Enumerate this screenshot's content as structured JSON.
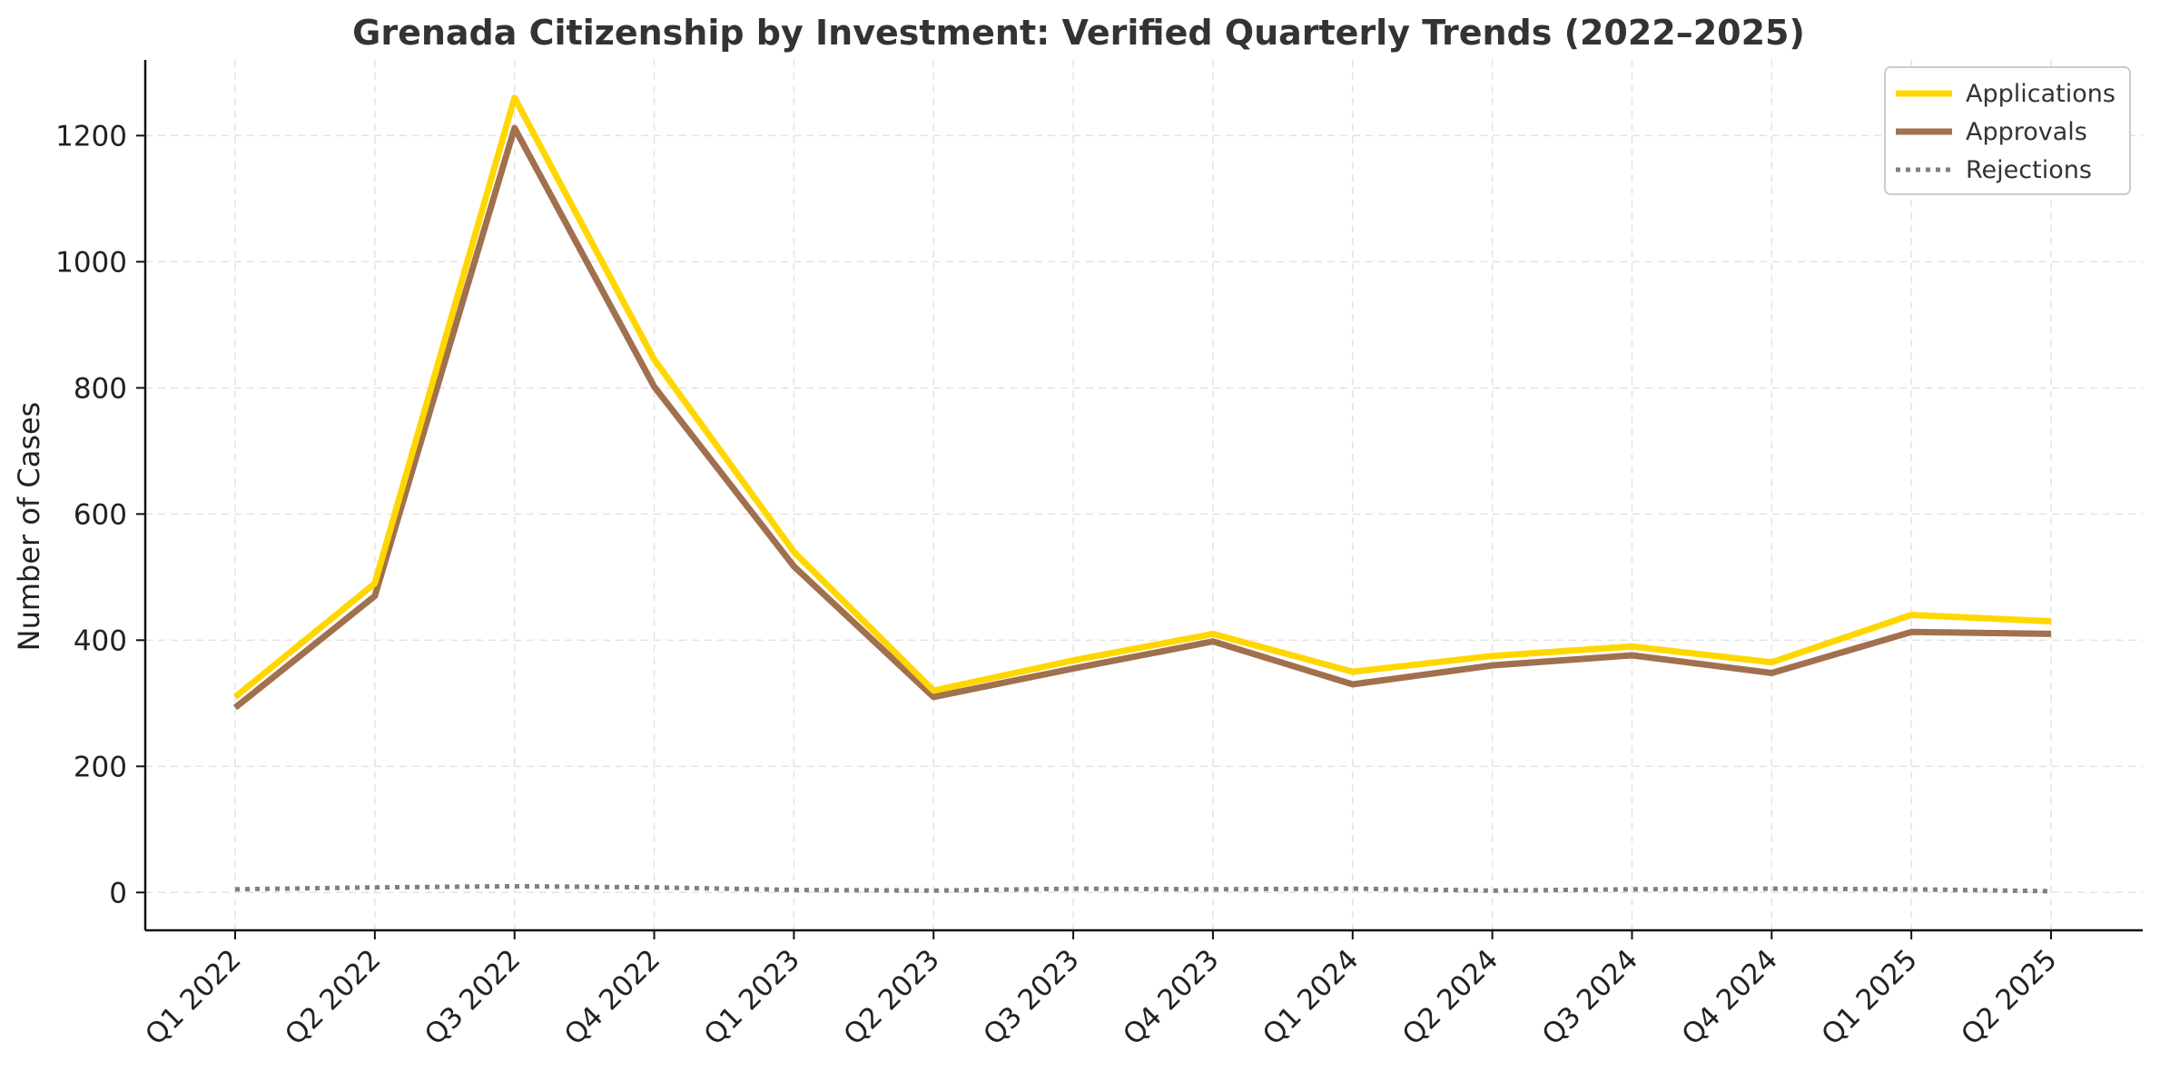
{
  "chart_data": {
    "type": "line",
    "title": "Grenada Citizenship by Investment: Verified Quarterly Trends (2022–2025)",
    "xlabel": "",
    "ylabel": "Number of Cases",
    "categories": [
      "Q1 2022",
      "Q2 2022",
      "Q3 2022",
      "Q4 2022",
      "Q1 2023",
      "Q2 2023",
      "Q3 2023",
      "Q4 2023",
      "Q1 2024",
      "Q2 2024",
      "Q3 2024",
      "Q4 2024",
      "Q1 2025",
      "Q2 2025"
    ],
    "ylim": [
      -60,
      1320
    ],
    "yticks": [
      0,
      200,
      400,
      600,
      800,
      1000,
      1200
    ],
    "grid": true,
    "legend_position": "top-right",
    "series": [
      {
        "name": "Applications",
        "color": "#FFD700",
        "style": "solid",
        "values": [
          310,
          490,
          1260,
          845,
          540,
          320,
          368,
          410,
          350,
          375,
          390,
          365,
          440,
          430
        ]
      },
      {
        "name": "Approvals",
        "color": "#A0704F",
        "style": "solid",
        "values": [
          293,
          470,
          1212,
          802,
          517,
          310,
          355,
          398,
          330,
          360,
          376,
          348,
          413,
          410
        ]
      },
      {
        "name": "Rejections",
        "color": "#808080",
        "style": "dotted",
        "values": [
          5,
          8,
          10,
          8,
          4,
          3,
          6,
          5,
          6,
          3,
          5,
          6,
          5,
          2
        ]
      }
    ]
  }
}
